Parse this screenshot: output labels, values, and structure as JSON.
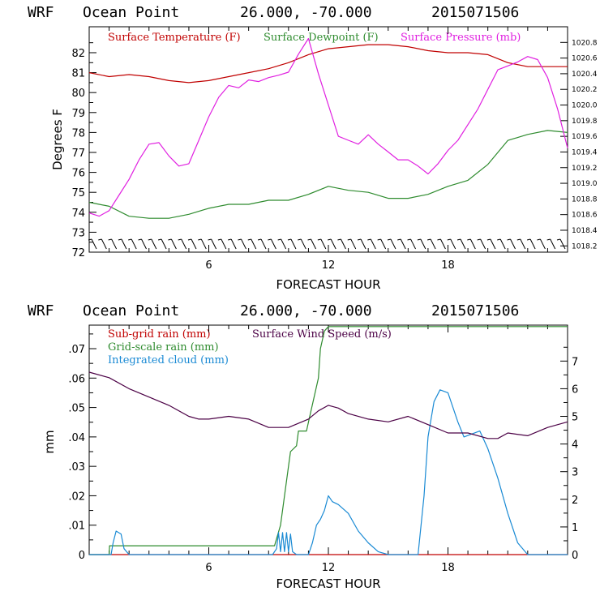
{
  "chart_data": [
    {
      "type": "line",
      "title": {
        "model": "WRF",
        "location": "Ocean Point",
        "coords": "26.000, -70.000",
        "run": "2015071506"
      },
      "xlabel": "FORECAST HOUR",
      "ylabel": "Degrees F",
      "xlim": [
        0,
        24
      ],
      "xticks": [
        "6",
        "12",
        "18"
      ],
      "xtick_values": [
        6,
        12,
        18
      ],
      "ylim": [
        72,
        83.3
      ],
      "yticks": [
        "72",
        "73",
        "74",
        "75",
        "76",
        "77",
        "78",
        "79",
        "80",
        "81",
        "82"
      ],
      "y2lim": [
        1018.12,
        1021.0
      ],
      "y2ticks": [
        "1018.2",
        "1018.4",
        "1018.6",
        "1018.8",
        "1019.0",
        "1019.2",
        "1019.4",
        "1019.6",
        "1019.8",
        "1020.0",
        "1020.2",
        "1020.4",
        "1020.6",
        "1020.8"
      ],
      "wind_barbs": "wind barbs along bottom",
      "series": [
        {
          "name": "Surface Temperature (F)",
          "color": "#c00000",
          "axis": "left",
          "x": [
            0,
            1,
            2,
            3,
            4,
            5,
            6,
            7,
            8,
            9,
            10,
            11,
            12,
            13,
            14,
            15,
            16,
            17,
            18,
            19,
            20,
            21,
            22,
            23,
            24
          ],
          "y": [
            81.0,
            80.8,
            80.9,
            80.8,
            80.6,
            80.5,
            80.6,
            80.8,
            81.0,
            81.2,
            81.5,
            81.9,
            82.2,
            82.3,
            82.4,
            82.4,
            82.3,
            82.1,
            82.0,
            82.0,
            81.9,
            81.5,
            81.3,
            81.3,
            81.3
          ]
        },
        {
          "name": "Surface Dewpoint (F)",
          "color": "#2e8b2e",
          "axis": "left",
          "x": [
            0,
            1,
            2,
            3,
            4,
            5,
            6,
            7,
            8,
            9,
            10,
            11,
            12,
            13,
            14,
            15,
            16,
            17,
            18,
            19,
            20,
            21,
            22,
            23,
            24
          ],
          "y": [
            74.5,
            74.3,
            73.8,
            73.7,
            73.7,
            73.9,
            74.2,
            74.4,
            74.4,
            74.6,
            74.6,
            74.9,
            75.3,
            75.1,
            75.0,
            74.7,
            74.7,
            74.9,
            75.3,
            75.6,
            76.4,
            77.6,
            77.9,
            78.1,
            78.0
          ]
        },
        {
          "name": "Surface Pressure (mb)",
          "color": "#e020e0",
          "axis": "right",
          "x": [
            0,
            0.5,
            1,
            1.5,
            2,
            2.5,
            3,
            3.5,
            4,
            4.5,
            5,
            5.5,
            6,
            6.5,
            7,
            7.5,
            8,
            8.5,
            9,
            9.5,
            10,
            10.5,
            11,
            11.5,
            12,
            12.5,
            13,
            13.5,
            14,
            14.5,
            15,
            15.5,
            16,
            16.5,
            17,
            17.5,
            18,
            18.5,
            19,
            19.5,
            20,
            20.5,
            21,
            21.5,
            22,
            22.5,
            23,
            23.5,
            24
          ],
          "y": [
            1018.62,
            1018.58,
            1018.65,
            1018.85,
            1019.05,
            1019.3,
            1019.5,
            1019.52,
            1019.35,
            1019.22,
            1019.25,
            1019.55,
            1019.85,
            1020.1,
            1020.25,
            1020.22,
            1020.32,
            1020.3,
            1020.35,
            1020.38,
            1020.42,
            1020.65,
            1020.85,
            1020.4,
            1020.0,
            1019.6,
            1019.55,
            1019.5,
            1019.62,
            1019.5,
            1019.4,
            1019.3,
            1019.3,
            1019.22,
            1019.12,
            1019.25,
            1019.42,
            1019.55,
            1019.75,
            1019.95,
            1020.2,
            1020.45,
            1020.5,
            1020.55,
            1020.62,
            1020.58,
            1020.35,
            1019.95,
            1019.45
          ]
        }
      ]
    },
    {
      "type": "line",
      "title": {
        "model": "WRF",
        "location": "Ocean Point",
        "coords": "26.000, -70.000",
        "run": "2015071506"
      },
      "xlabel": "FORECAST HOUR",
      "ylabel": "mm",
      "xlim": [
        0,
        24
      ],
      "xticks": [
        "6",
        "12",
        "18"
      ],
      "xtick_values": [
        6,
        12,
        18
      ],
      "ylim": [
        0,
        0.078
      ],
      "yticks": [
        "0",
        ".01",
        ".02",
        ".03",
        ".04",
        ".05",
        ".06",
        ".07"
      ],
      "ytick_values": [
        0,
        0.01,
        0.02,
        0.03,
        0.04,
        0.05,
        0.06,
        0.07
      ],
      "y2lim": [
        0,
        8.3
      ],
      "y2ticks": [
        "0",
        "1",
        "2",
        "3",
        "4",
        "5",
        "6",
        "7"
      ],
      "series": [
        {
          "name": "Sub-grid rain (mm)",
          "color": "#c00000",
          "axis": "left",
          "x": [
            0,
            24
          ],
          "y": [
            0,
            0
          ]
        },
        {
          "name": "Grid-scale rain (mm)",
          "color": "#2e8b2e",
          "axis": "left",
          "x": [
            0,
            1,
            1.02,
            9.3,
            9.6,
            10.0,
            10.1,
            10.4,
            10.5,
            10.9,
            11.0,
            11.5,
            11.6,
            11.8,
            12.0,
            24
          ],
          "y": [
            0,
            0,
            0.003,
            0.003,
            0.01,
            0.03,
            0.035,
            0.037,
            0.042,
            0.042,
            0.045,
            0.06,
            0.07,
            0.076,
            0.0775,
            0.0775
          ]
        },
        {
          "name": "Integrated cloud (mm)",
          "color": "#1a8ad4",
          "axis": "left",
          "x": [
            0,
            1.1,
            1.2,
            1.35,
            1.6,
            1.75,
            2.0,
            9.2,
            9.4,
            9.5,
            9.6,
            9.7,
            9.8,
            9.9,
            10.0,
            10.1,
            10.2,
            10.4,
            11.0,
            11.2,
            11.4,
            11.6,
            11.8,
            12.0,
            12.2,
            12.5,
            13.0,
            13.5,
            14.0,
            14.5,
            15.0,
            16.5,
            16.8,
            17.0,
            17.3,
            17.6,
            18.0,
            18.5,
            18.8,
            19.2,
            19.6,
            20.0,
            20.5,
            21.0,
            21.5,
            22.0,
            24
          ],
          "y": [
            0,
            0,
            0.004,
            0.008,
            0.007,
            0.002,
            0,
            0,
            0.002,
            0.0075,
            0.001,
            0.0075,
            0.001,
            0.0075,
            0.001,
            0.007,
            0.001,
            0,
            0,
            0.004,
            0.01,
            0.012,
            0.015,
            0.02,
            0.018,
            0.017,
            0.014,
            0.008,
            0.004,
            0.001,
            0,
            0,
            0.02,
            0.04,
            0.052,
            0.056,
            0.055,
            0.045,
            0.04,
            0.041,
            0.042,
            0.036,
            0.026,
            0.014,
            0.004,
            0,
            0
          ]
        },
        {
          "name": "Surface Wind Speed (m/s)",
          "color": "#4b0045",
          "axis": "right",
          "x": [
            0,
            1,
            2,
            3,
            4,
            5,
            5.5,
            6,
            7,
            8,
            9,
            10,
            11,
            11.5,
            12,
            12.5,
            13,
            14,
            15,
            16,
            17,
            18,
            19,
            20,
            20.5,
            21,
            22,
            23,
            24
          ],
          "y": [
            6.6,
            6.4,
            6.0,
            5.7,
            5.4,
            5.0,
            4.9,
            4.9,
            5.0,
            4.9,
            4.6,
            4.6,
            4.9,
            5.2,
            5.4,
            5.3,
            5.1,
            4.9,
            4.8,
            5.0,
            4.7,
            4.4,
            4.4,
            4.2,
            4.2,
            4.4,
            4.3,
            4.6,
            4.8
          ]
        }
      ]
    }
  ]
}
